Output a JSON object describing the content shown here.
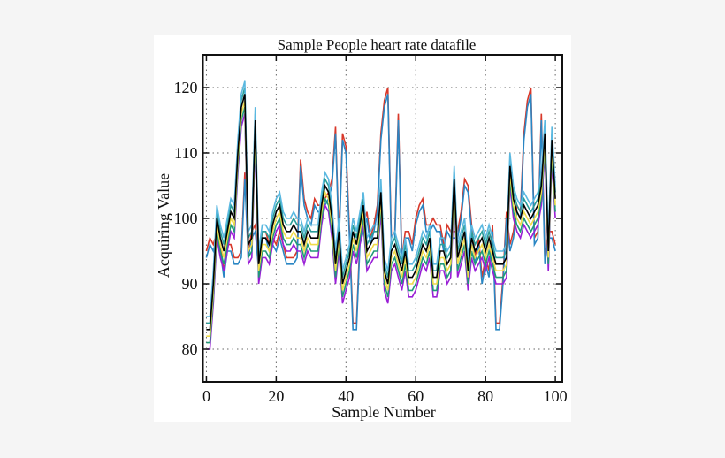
{
  "chart_data": {
    "type": "line",
    "title": "Sample People heart rate datafile",
    "xlabel": "Sample Number",
    "ylabel": "Acquiring Value",
    "xlim": [
      -1,
      102
    ],
    "ylim": [
      75,
      125
    ],
    "xticks": [
      0,
      20,
      40,
      60,
      80,
      100
    ],
    "yticks": [
      80,
      90,
      100,
      110,
      120
    ],
    "grid": true,
    "legend": "none",
    "x_start": 0,
    "x_step": 1,
    "series": [
      {
        "color": "#d8382a",
        "values": [
          95,
          97,
          96,
          98,
          96,
          92,
          96,
          96,
          94,
          94,
          95,
          107,
          95,
          98,
          99,
          93,
          98,
          98,
          96,
          97,
          96,
          98,
          96,
          94,
          94,
          94,
          95,
          109,
          103,
          101,
          100,
          103,
          102,
          102,
          103,
          104,
          106,
          114,
          97,
          113,
          111,
          98,
          84,
          84,
          97,
          99,
          101,
          97,
          99,
          102,
          113,
          118,
          120,
          97,
          98,
          116,
          94,
          98,
          98,
          96,
          100,
          102,
          103,
          99,
          99,
          100,
          99,
          99,
          96,
          99,
          98,
          98,
          98,
          101,
          106,
          105,
          99,
          94,
          97,
          91,
          94,
          92,
          99,
          84,
          84,
          91,
          101,
          96,
          98,
          102,
          101,
          113,
          118,
          120,
          97,
          98,
          116,
          94,
          98,
          98,
          96
        ]
      },
      {
        "color": "#2a86c4",
        "values": [
          94,
          96,
          95,
          97,
          95,
          91,
          95,
          95,
          93,
          93,
          94,
          106,
          94,
          97,
          98,
          92,
          97,
          97,
          95,
          96,
          95,
          97,
          95,
          93,
          93,
          93,
          94,
          108,
          102,
          100,
          99,
          102,
          101,
          101,
          102,
          103,
          105,
          113,
          96,
          112,
          110,
          97,
          83,
          83,
          96,
          98,
          100,
          96,
          98,
          101,
          112,
          117,
          119,
          96,
          97,
          115,
          93,
          97,
          97,
          95,
          99,
          101,
          102,
          98,
          98,
          99,
          98,
          98,
          95,
          98,
          97,
          97,
          97,
          100,
          105,
          104,
          98,
          93,
          96,
          90,
          93,
          91,
          98,
          83,
          83,
          90,
          100,
          95,
          97,
          101,
          100,
          112,
          117,
          119,
          96,
          97,
          115,
          93,
          97,
          97,
          95
        ]
      },
      {
        "color": "#9a1ed6",
        "values": [
          80,
          80,
          87,
          97,
          94,
          92,
          95,
          98,
          97,
          107,
          114,
          116,
          93,
          94,
          112,
          90,
          94,
          94,
          93,
          96,
          98,
          99,
          96,
          95,
          95,
          96,
          95,
          95,
          93,
          95,
          94,
          94,
          94,
          99,
          102,
          101,
          97,
          90,
          95,
          87,
          89,
          91,
          95,
          93,
          96,
          99,
          92,
          93,
          94,
          94,
          101,
          89,
          87,
          92,
          93,
          91,
          89,
          92,
          88,
          88,
          89,
          91,
          93,
          92,
          94,
          88,
          88,
          92,
          92,
          90,
          91,
          103,
          91,
          93,
          95,
          89,
          94,
          92,
          93,
          94,
          92,
          94,
          92,
          90,
          90,
          90,
          91,
          105,
          100,
          98,
          97,
          99,
          98,
          97,
          98,
          99,
          102,
          110,
          92,
          109,
          100
        ]
      },
      {
        "color": "#1f9a78",
        "values": [
          81,
          81,
          88,
          98,
          95,
          93,
          96,
          99,
          98,
          108,
          115,
          117,
          94,
          95,
          113,
          91,
          95,
          95,
          94,
          97,
          99,
          100,
          97,
          96,
          96,
          97,
          96,
          96,
          94,
          96,
          95,
          95,
          95,
          100,
          103,
          102,
          98,
          91,
          96,
          88,
          90,
          92,
          96,
          94,
          97,
          100,
          93,
          94,
          95,
          95,
          102,
          90,
          88,
          93,
          94,
          92,
          90,
          93,
          89,
          89,
          90,
          92,
          94,
          93,
          95,
          89,
          89,
          93,
          93,
          91,
          92,
          104,
          92,
          94,
          96,
          90,
          95,
          93,
          94,
          95,
          93,
          95,
          93,
          91,
          91,
          91,
          92,
          106,
          101,
          99,
          98,
          100,
          99,
          98,
          99,
          100,
          103,
          111,
          93,
          110,
          101
        ]
      },
      {
        "color": "#f0dc4a",
        "values": [
          82,
          82,
          89,
          99,
          96,
          94,
          97,
          100,
          99,
          109,
          116,
          118,
          95,
          96,
          114,
          92,
          96,
          96,
          95,
          98,
          100,
          101,
          98,
          97,
          97,
          98,
          97,
          97,
          95,
          97,
          96,
          96,
          96,
          101,
          104,
          103,
          99,
          92,
          97,
          89,
          91,
          93,
          97,
          95,
          98,
          101,
          94,
          95,
          96,
          96,
          103,
          91,
          89,
          94,
          95,
          93,
          91,
          94,
          90,
          90,
          91,
          93,
          95,
          94,
          96,
          90,
          90,
          94,
          94,
          92,
          93,
          105,
          93,
          95,
          97,
          91,
          96,
          94,
          95,
          96,
          94,
          96,
          94,
          92,
          92,
          92,
          93,
          107,
          102,
          100,
          99,
          101,
          100,
          99,
          100,
          101,
          104,
          112,
          94,
          111,
          102
        ]
      },
      {
        "color": "#2a9e9a",
        "values": [
          84,
          84,
          91,
          101,
          98,
          96,
          99,
          102,
          101,
          111,
          118,
          120,
          97,
          98,
          116,
          94,
          98,
          98,
          97,
          100,
          102,
          103,
          100,
          99,
          99,
          100,
          99,
          99,
          97,
          99,
          98,
          98,
          98,
          103,
          106,
          105,
          101,
          94,
          99,
          91,
          93,
          95,
          99,
          97,
          100,
          103,
          96,
          97,
          98,
          98,
          105,
          93,
          91,
          96,
          97,
          95,
          93,
          96,
          92,
          92,
          93,
          95,
          97,
          96,
          98,
          92,
          92,
          96,
          96,
          94,
          95,
          107,
          95,
          97,
          99,
          93,
          98,
          96,
          97,
          98,
          96,
          98,
          96,
          94,
          94,
          94,
          95,
          109,
          104,
          102,
          101,
          103,
          102,
          101,
          102,
          103,
          106,
          114,
          96,
          113,
          104
        ]
      },
      {
        "color": "#5ab8e0",
        "values": [
          85,
          85,
          92,
          102,
          99,
          97,
          100,
          103,
          102,
          112,
          119,
          121,
          98,
          99,
          117,
          95,
          99,
          99,
          98,
          101,
          103,
          104,
          101,
          100,
          100,
          101,
          100,
          100,
          98,
          100,
          99,
          99,
          99,
          104,
          107,
          106,
          102,
          95,
          100,
          92,
          94,
          96,
          100,
          98,
          101,
          104,
          97,
          98,
          99,
          99,
          106,
          94,
          92,
          97,
          98,
          96,
          94,
          97,
          93,
          93,
          94,
          96,
          98,
          97,
          99,
          93,
          93,
          97,
          97,
          95,
          96,
          108,
          96,
          98,
          100,
          94,
          99,
          97,
          98,
          99,
          97,
          99,
          97,
          95,
          95,
          95,
          96,
          110,
          105,
          103,
          102,
          104,
          103,
          102,
          103,
          104,
          107,
          115,
          97,
          114,
          105
        ]
      },
      {
        "color": "#000000",
        "values": [
          83,
          83,
          90,
          100,
          97,
          95,
          98,
          101,
          100,
          110,
          117,
          119,
          96,
          97,
          115,
          93,
          97,
          97,
          96,
          99,
          101,
          102,
          99,
          98,
          98,
          99,
          98,
          98,
          96,
          98,
          97,
          97,
          97,
          102,
          105,
          104,
          100,
          93,
          98,
          90,
          92,
          94,
          98,
          96,
          99,
          102,
          95,
          96,
          97,
          97,
          104,
          92,
          90,
          95,
          96,
          94,
          92,
          95,
          91,
          91,
          92,
          94,
          96,
          95,
          97,
          91,
          91,
          95,
          95,
          93,
          94,
          106,
          94,
          96,
          98,
          92,
          97,
          95,
          96,
          97,
          95,
          97,
          95,
          93,
          93,
          93,
          94,
          108,
          103,
          101,
          100,
          102,
          101,
          100,
          101,
          102,
          105,
          113,
          95,
          112,
          103
        ]
      }
    ]
  }
}
